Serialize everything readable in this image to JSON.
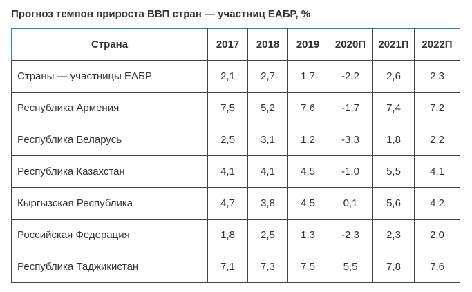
{
  "title": "Прогноз темпов прироста ВВП стран — участниц ЕАБР, %",
  "table": {
    "headers": [
      "Страна",
      "2017",
      "2018",
      "2019",
      "2020П",
      "2021П",
      "2022П"
    ],
    "rows": [
      {
        "country": "Страны — участницы ЕАБР",
        "values": [
          "2,1",
          "2,7",
          "1,7",
          "-2,2",
          "2,6",
          "2,3"
        ]
      },
      {
        "country": "Республика Армения",
        "values": [
          "7,5",
          "5,2",
          "7,6",
          "-1,7",
          "7,4",
          "7,2"
        ]
      },
      {
        "country": "Республика Беларусь",
        "values": [
          "2,5",
          "3,1",
          "1,2",
          "-3,3",
          "1,8",
          "2,2"
        ]
      },
      {
        "country": "Республика Казахстан",
        "values": [
          "4,1",
          "4,1",
          "4,5",
          "-1,0",
          "5,5",
          "4,1"
        ]
      },
      {
        "country": "Кыргызская Республика",
        "values": [
          "4,7",
          "3,8",
          "4,5",
          "0,1",
          "5,6",
          "4,2"
        ]
      },
      {
        "country": "Российская Федерация",
        "values": [
          "1,8",
          "2,5",
          "1,3",
          "-2,3",
          "2,3",
          "2,0"
        ]
      },
      {
        "country": "Республика Таджикистан",
        "values": [
          "7,1",
          "7,3",
          "7,5",
          "5,5",
          "7,8",
          "7,6"
        ]
      }
    ]
  }
}
